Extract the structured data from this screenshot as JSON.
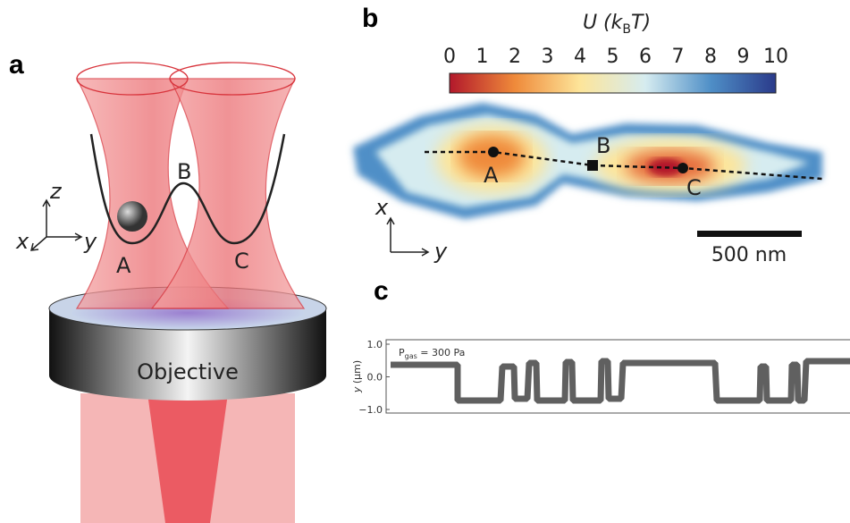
{
  "panel_a": {
    "label": "a",
    "axes": {
      "z": "z",
      "x": "x",
      "y": "y"
    },
    "points": {
      "A": "A",
      "B": "B",
      "C": "C"
    },
    "objective": "Objective"
  },
  "panel_b": {
    "label": "b",
    "colorbar": {
      "title_parts": [
        "U (",
        "k",
        "B",
        "T)"
      ],
      "ticks": [
        "0",
        "1",
        "2",
        "3",
        "4",
        "5",
        "6",
        "7",
        "8",
        "9",
        "10"
      ]
    },
    "points": {
      "A": "A",
      "B": "B",
      "C": "C"
    },
    "axes": {
      "x": "x",
      "y": "y"
    },
    "scale_bar": "500 nm"
  },
  "panel_c": {
    "label": "c",
    "y_label_parts": [
      "y",
      " (μm)"
    ],
    "y_ticks": [
      "1.0",
      "0.0",
      "−1.0"
    ],
    "annotation_parts": [
      "P",
      "gas",
      " = 300 Pa"
    ]
  }
}
